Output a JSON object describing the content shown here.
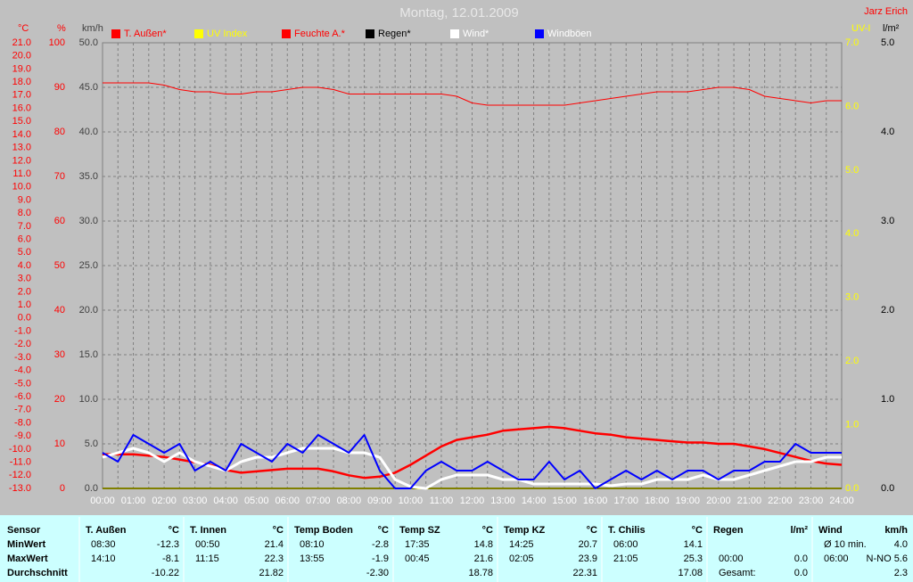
{
  "chart_data": {
    "type": "line",
    "title": "Montag, 12.01.2009",
    "owner": "Jarz Erich",
    "categories": [
      "00:00",
      null,
      "01:00",
      null,
      "02:00",
      null,
      "03:00",
      null,
      "04:00",
      null,
      "05:00",
      null,
      "06:00",
      null,
      "07:00",
      null,
      "08:00",
      null,
      "09:00",
      null,
      "10:00",
      null,
      "11:00",
      null,
      "12:00",
      null,
      "13:00",
      null,
      "14:00",
      null,
      "15:00",
      null,
      "16:00",
      null,
      "17:00",
      null,
      "18:00",
      null,
      "19:00",
      null,
      "20:00",
      null,
      "21:00",
      null,
      "22:00",
      null,
      "23:00",
      null,
      "24:00"
    ],
    "grid": true,
    "axes": [
      {
        "unit": "°C",
        "color": "#ff0000",
        "lim": [
          -13,
          21
        ],
        "ticks": [
          {
            "value": -13,
            "label": "-13.0"
          },
          {
            "value": -12,
            "label": "-12.0"
          },
          {
            "value": -11,
            "label": "-11.0"
          },
          {
            "value": -10,
            "label": "-10.0"
          },
          {
            "value": -9,
            "label": "-9.0"
          },
          {
            "value": -8,
            "label": "-8.0"
          },
          {
            "value": -7,
            "label": "-7.0"
          },
          {
            "value": -6,
            "label": "-6.0"
          },
          {
            "value": -5,
            "label": "-5.0"
          },
          {
            "value": -4,
            "label": "-4.0"
          },
          {
            "value": -3,
            "label": "-3.0"
          },
          {
            "value": -2,
            "label": "-2.0"
          },
          {
            "value": -1,
            "label": "-1.0"
          },
          {
            "value": 0,
            "label": "0.0"
          },
          {
            "value": 1,
            "label": "1.0"
          },
          {
            "value": 2,
            "label": "2.0"
          },
          {
            "value": 3,
            "label": "3.0"
          },
          {
            "value": 4,
            "label": "4.0"
          },
          {
            "value": 5,
            "label": "5.0"
          },
          {
            "value": 6,
            "label": "6.0"
          },
          {
            "value": 7,
            "label": "7.0"
          },
          {
            "value": 8,
            "label": "8.0"
          },
          {
            "value": 9,
            "label": "9.0"
          },
          {
            "value": 10,
            "label": "10.0"
          },
          {
            "value": 11,
            "label": "11.0"
          },
          {
            "value": 12,
            "label": "12.0"
          },
          {
            "value": 13,
            "label": "13.0"
          },
          {
            "value": 14,
            "label": "14.0"
          },
          {
            "value": 15,
            "label": "15.0"
          },
          {
            "value": 16,
            "label": "16.0"
          },
          {
            "value": 17,
            "label": "17.0"
          },
          {
            "value": 18,
            "label": "18.0"
          },
          {
            "value": 19,
            "label": "19.0"
          },
          {
            "value": 20,
            "label": "20.0"
          },
          {
            "value": 21,
            "label": "21.0"
          }
        ]
      },
      {
        "unit": "%",
        "color": "#ff0000",
        "lim": [
          0,
          100
        ],
        "ticks": [
          0,
          10,
          20,
          30,
          40,
          50,
          60,
          70,
          80,
          90,
          100
        ]
      },
      {
        "unit": "km/h",
        "color": "#404040",
        "lim": [
          0,
          50
        ],
        "ticks": [
          {
            "value": 0,
            "label": "0.0"
          },
          {
            "value": 5,
            "label": "5.0"
          },
          {
            "value": 10,
            "label": "10.0"
          },
          {
            "value": 15,
            "label": "15.0"
          },
          {
            "value": 20,
            "label": "20.0"
          },
          {
            "value": 25,
            "label": "25.0"
          },
          {
            "value": 30,
            "label": "30.0"
          },
          {
            "value": 35,
            "label": "35.0"
          },
          {
            "value": 40,
            "label": "40.0"
          },
          {
            "value": 45,
            "label": "45.0"
          },
          {
            "value": 50,
            "label": "50.0"
          }
        ]
      },
      {
        "unit": "UV-I",
        "color": "#ffff00",
        "lim": [
          0,
          7
        ],
        "ticks": [
          {
            "value": 0,
            "label": "0.0"
          },
          {
            "value": 1,
            "label": "1.0"
          },
          {
            "value": 2,
            "label": "2.0"
          },
          {
            "value": 3,
            "label": "3.0"
          },
          {
            "value": 4,
            "label": "4.0"
          },
          {
            "value": 5,
            "label": "5.0"
          },
          {
            "value": 6,
            "label": "6.0"
          },
          {
            "value": 7,
            "label": "7.0"
          }
        ]
      },
      {
        "unit": "l/m²",
        "color": "#000000",
        "lim": [
          0,
          5
        ],
        "ticks": [
          {
            "value": 0,
            "label": "0.0"
          },
          {
            "value": 1,
            "label": "1.0"
          },
          {
            "value": 2,
            "label": "2.0"
          },
          {
            "value": 3,
            "label": "3.0"
          },
          {
            "value": 4,
            "label": "4.0"
          },
          {
            "value": 5,
            "label": "5.0"
          }
        ]
      }
    ],
    "series": [
      {
        "name": "T. Außen*",
        "color": "#ff0000",
        "legend_text_color": "#ff0000",
        "axis": 0,
        "values": [
          -10.4,
          -10.4,
          -10.4,
          -10.5,
          -10.6,
          -10.8,
          -11.0,
          -11.2,
          -11.6,
          -11.8,
          -11.7,
          -11.6,
          -11.5,
          -11.5,
          -11.5,
          -11.7,
          -12.0,
          -12.2,
          -12.1,
          -11.8,
          -11.2,
          -10.5,
          -9.8,
          -9.3,
          -9.1,
          -8.9,
          -8.6,
          -8.5,
          -8.4,
          -8.3,
          -8.4,
          -8.6,
          -8.8,
          -8.9,
          -9.1,
          -9.2,
          -9.3,
          -9.4,
          -9.5,
          -9.5,
          -9.6,
          -9.6,
          -9.8,
          -10.0,
          -10.3,
          -10.6,
          -10.9,
          -11.1,
          -11.2
        ]
      },
      {
        "name": "UV Index",
        "color": "#ffff00",
        "legend_text_color": "#ffff00",
        "axis": 3,
        "values": [
          0,
          0,
          0,
          0,
          0,
          0,
          0,
          0,
          0,
          0,
          0,
          0,
          0,
          0,
          0,
          0,
          0,
          0,
          0,
          0,
          0,
          0,
          0,
          0,
          0,
          0,
          0,
          0,
          0,
          0,
          0,
          0,
          0,
          0,
          0,
          0,
          0,
          0,
          0,
          0,
          0,
          0,
          0,
          0,
          0,
          0,
          0,
          0,
          0
        ]
      },
      {
        "name": "Feuchte A.*",
        "color": "#ff0000",
        "legend_text_color": "#ff0000",
        "axis": 1,
        "values": [
          91,
          91,
          91,
          91,
          90.5,
          89.5,
          89,
          89,
          88.5,
          88.5,
          89,
          89,
          89.5,
          90,
          90,
          89.5,
          88.5,
          88.5,
          88.5,
          88.5,
          88.5,
          88.5,
          88.5,
          88,
          86.5,
          86,
          86,
          86,
          86,
          86,
          86,
          86.5,
          87,
          87.5,
          88,
          88.5,
          89,
          89,
          89,
          89.5,
          90,
          90,
          89.5,
          88,
          87.5,
          87,
          86.5,
          87,
          87
        ]
      },
      {
        "name": "Regen*",
        "color": "#000000",
        "legend_text_color": "#000000",
        "axis": 4,
        "values": [
          0,
          0,
          0,
          0,
          0,
          0,
          0,
          0,
          0,
          0,
          0,
          0,
          0,
          0,
          0,
          0,
          0,
          0,
          0,
          0,
          0,
          0,
          0,
          0,
          0,
          0,
          0,
          0,
          0,
          0,
          0,
          0,
          0,
          0,
          0,
          0,
          0,
          0,
          0,
          0,
          0,
          0,
          0,
          0,
          0,
          0,
          0,
          0,
          0
        ]
      },
      {
        "name": "Wind*",
        "color": "#ffffff",
        "legend_text_color": "#ffffff",
        "axis": 2,
        "values": [
          3.5,
          4,
          4.5,
          4,
          3,
          4,
          3,
          2.5,
          2,
          3,
          3.5,
          3.5,
          4,
          4.5,
          4.5,
          4.5,
          4,
          4,
          3.5,
          1,
          0.2,
          0,
          1,
          1.5,
          1.5,
          1.5,
          1,
          1,
          0.5,
          0.5,
          0.5,
          0.5,
          0.5,
          0.3,
          0.5,
          0.5,
          1,
          1,
          1,
          1.5,
          1,
          1,
          1.5,
          2,
          2.5,
          3,
          3,
          3.5,
          3.5
        ]
      },
      {
        "name": "Windböen",
        "color": "#0000ff",
        "legend_text_color": "#ffffff",
        "axis": 2,
        "values": [
          4,
          3,
          6,
          5,
          4,
          5,
          2,
          3,
          2,
          5,
          4,
          3,
          5,
          4,
          6,
          5,
          4,
          6,
          2,
          0,
          0,
          2,
          3,
          2,
          2,
          3,
          2,
          1,
          1,
          3,
          1,
          2,
          0,
          1,
          2,
          1,
          2,
          1,
          2,
          2,
          1,
          2,
          2,
          3,
          3,
          5,
          4,
          4,
          4
        ]
      }
    ]
  },
  "table": {
    "row_labels": [
      "Sensor",
      "MinWert",
      "MaxWert",
      "Durchschnitt"
    ],
    "columns": [
      {
        "name": "T. Außen",
        "unit": "°C",
        "min": [
          "08:30",
          "-12.3"
        ],
        "max": [
          "14:10",
          "-8.1"
        ],
        "avg": "-10.22"
      },
      {
        "name": "T. Innen",
        "unit": "°C",
        "min": [
          "00:50",
          "21.4"
        ],
        "max": [
          "11:15",
          "22.3"
        ],
        "avg": "21.82"
      },
      {
        "name": "Temp Boden",
        "unit": "°C",
        "min": [
          "08:10",
          "-2.8"
        ],
        "max": [
          "13:55",
          "-1.9"
        ],
        "avg": "-2.30"
      },
      {
        "name": "Temp SZ",
        "unit": "°C",
        "min": [
          "17:35",
          "14.8"
        ],
        "max": [
          "00:45",
          "21.6"
        ],
        "avg": "18.78"
      },
      {
        "name": "Temp KZ",
        "unit": "°C",
        "min": [
          "14:25",
          "20.7"
        ],
        "max": [
          "02:05",
          "23.9"
        ],
        "avg": "22.31"
      },
      {
        "name": "T. Chilis",
        "unit": "°C",
        "min": [
          "06:00",
          "14.1"
        ],
        "max": [
          "21:05",
          "25.3"
        ],
        "avg": "17.08"
      },
      {
        "name": "Regen",
        "unit": "l/m²",
        "max": [
          "00:00",
          "0.0"
        ],
        "total": [
          "Gesamt:",
          "0.0"
        ]
      },
      {
        "name": "Wind",
        "unit": "km/h",
        "min": [
          "Ø 10 min.",
          "4.0"
        ],
        "max": [
          "06:00",
          "N-NO 5.6"
        ],
        "avg": "2.3"
      }
    ]
  }
}
